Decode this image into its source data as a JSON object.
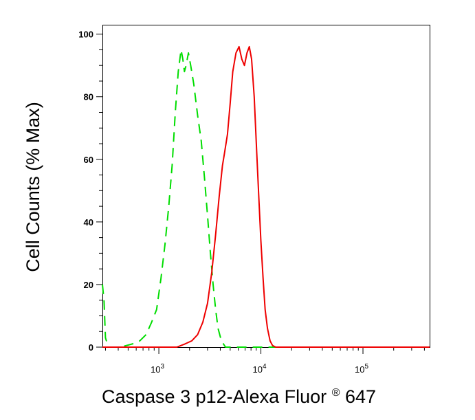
{
  "chart_data": {
    "type": "line",
    "title": "",
    "xlabel_main": "Caspase 3 p12-Alexa Fluor",
    "xlabel_reg": "®",
    "xlabel_tail": " 647",
    "ylabel": "Cell Counts (% Max)",
    "xscale": "log",
    "xlim": [
      280,
      450000
    ],
    "ylim": [
      0,
      103
    ],
    "yticks": [
      {
        "value": 0,
        "label": "0"
      },
      {
        "value": 20,
        "label": "20"
      },
      {
        "value": 40,
        "label": "40"
      },
      {
        "value": 60,
        "label": "60"
      },
      {
        "value": 80,
        "label": "80"
      },
      {
        "value": 100,
        "label": "100"
      }
    ],
    "xticks": [
      {
        "value": 1000,
        "base": "10",
        "exp": "3"
      },
      {
        "value": 10000,
        "base": "10",
        "exp": "4"
      },
      {
        "value": 100000,
        "base": "10",
        "exp": "5"
      }
    ],
    "grid": false,
    "legend": "none",
    "series": [
      {
        "color": "#00dd00",
        "dash": "dashed",
        "points": [
          [
            280,
            20
          ],
          [
            290,
            15
          ],
          [
            300,
            3
          ],
          [
            320,
            0
          ],
          [
            420,
            0
          ],
          [
            480,
            0.5
          ],
          [
            550,
            1
          ],
          [
            650,
            2
          ],
          [
            750,
            4
          ],
          [
            850,
            8
          ],
          [
            950,
            12
          ],
          [
            1050,
            22
          ],
          [
            1150,
            33
          ],
          [
            1250,
            45
          ],
          [
            1350,
            58
          ],
          [
            1450,
            75
          ],
          [
            1550,
            88
          ],
          [
            1650,
            95
          ],
          [
            1720,
            92
          ],
          [
            1780,
            88
          ],
          [
            1850,
            90
          ],
          [
            1950,
            94
          ],
          [
            2050,
            90
          ],
          [
            2200,
            84
          ],
          [
            2400,
            74
          ],
          [
            2600,
            66
          ],
          [
            2800,
            54
          ],
          [
            3000,
            42
          ],
          [
            3200,
            30
          ],
          [
            3400,
            20
          ],
          [
            3600,
            12
          ],
          [
            3800,
            6
          ],
          [
            4100,
            2
          ],
          [
            4500,
            0
          ],
          [
            6000,
            0
          ],
          [
            450000,
            0
          ]
        ]
      },
      {
        "color": "#ee0000",
        "dash": "solid",
        "points": [
          [
            280,
            0
          ],
          [
            1500,
            0
          ],
          [
            1800,
            1
          ],
          [
            2100,
            2
          ],
          [
            2400,
            4
          ],
          [
            2700,
            8
          ],
          [
            3000,
            14
          ],
          [
            3300,
            24
          ],
          [
            3600,
            36
          ],
          [
            3900,
            48
          ],
          [
            4200,
            58
          ],
          [
            4400,
            62
          ],
          [
            4700,
            68
          ],
          [
            5000,
            78
          ],
          [
            5300,
            88
          ],
          [
            5700,
            94
          ],
          [
            6100,
            96
          ],
          [
            6500,
            92
          ],
          [
            6900,
            90
          ],
          [
            7300,
            94
          ],
          [
            7700,
            96
          ],
          [
            8100,
            92
          ],
          [
            8600,
            80
          ],
          [
            9100,
            62
          ],
          [
            9600,
            46
          ],
          [
            10000,
            34
          ],
          [
            10500,
            22
          ],
          [
            11000,
            12
          ],
          [
            11600,
            6
          ],
          [
            12300,
            2
          ],
          [
            13000,
            0.5
          ],
          [
            14000,
            0
          ],
          [
            450000,
            0
          ]
        ]
      }
    ]
  }
}
